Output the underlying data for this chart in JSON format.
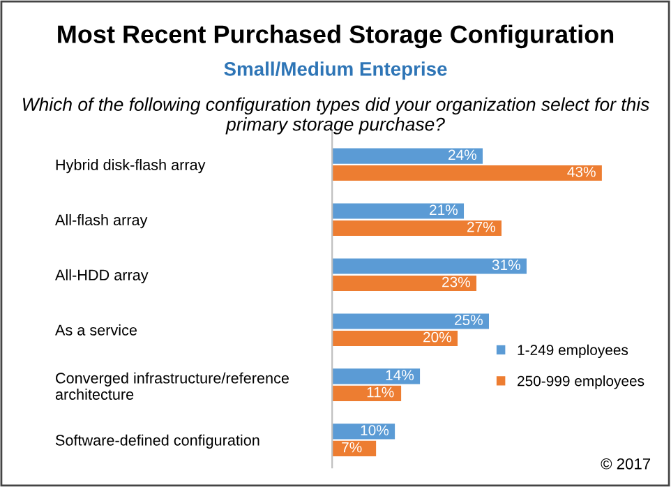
{
  "chart_data": {
    "type": "bar",
    "orientation": "horizontal",
    "title": "Most Recent Purchased Storage Configuration",
    "subtitle": "Small/Medium Enteprise",
    "annotations": [
      "Which of the following configuration types did your organization select for this primary storage purchase?",
      "© 2017"
    ],
    "categories": [
      "Hybrid disk-flash array",
      "All-flash array",
      "All-HDD array",
      "As a service",
      "Converged infrastructure/reference\narchitecture",
      "Software-defined configuration"
    ],
    "series": [
      {
        "name": "1-249 employees",
        "color": "#5b9bd5",
        "values": [
          24,
          21,
          31,
          25,
          14,
          10
        ],
        "value_labels": [
          "24%",
          "21%",
          "31%",
          "25%",
          "14%",
          "10%"
        ]
      },
      {
        "name": "250-999 employees",
        "color": "#ed7d31",
        "values": [
          43,
          27,
          23,
          20,
          11,
          7
        ],
        "value_labels": [
          "43%",
          "27%",
          "23%",
          "20%",
          "11%",
          "7%"
        ]
      }
    ],
    "legend": "right",
    "grid": false
  }
}
